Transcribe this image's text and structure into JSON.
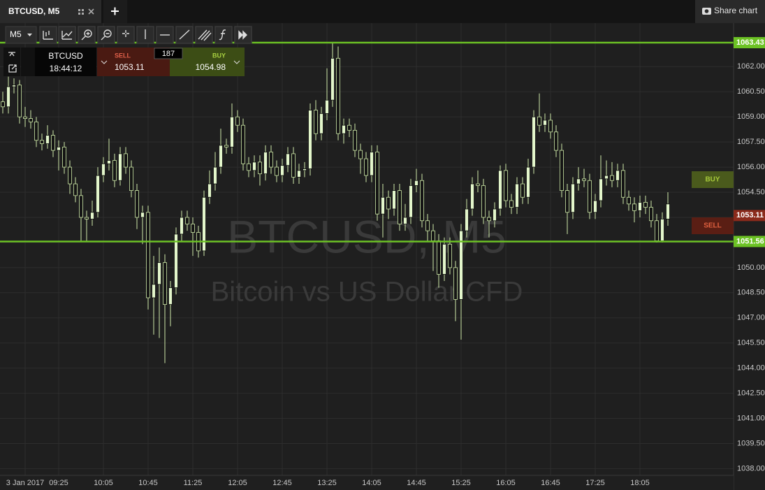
{
  "ui": {
    "tab": "BTCUSD, M5",
    "share": "Share chart",
    "timeframe": "M5",
    "symbol": "BTCUSD",
    "clock": "18:44:12",
    "sell_label": "SELL",
    "sell_price": 1053.11,
    "spread": 187,
    "buy_label": "BUY",
    "buy_price": 1054.98,
    "buy_tag": "BUY",
    "sell_tag": "SELL",
    "watermark_symbol": "BTCUSD, M5",
    "watermark_name": "Bitcoin vs US Dollar CFD"
  },
  "chart_data": {
    "type": "candlestick",
    "categories": [
      null,
      null,
      null,
      null,
      "3 Jan 2017",
      null,
      null,
      null,
      null,
      null,
      "09:25",
      null,
      null,
      null,
      null,
      null,
      null,
      null,
      "10:05",
      null,
      null,
      null,
      null,
      null,
      null,
      null,
      "10:45",
      null,
      null,
      null,
      null,
      null,
      null,
      null,
      "11:25",
      null,
      null,
      null,
      null,
      null,
      null,
      null,
      "12:05",
      null,
      null,
      null,
      null,
      null,
      null,
      null,
      "12:45",
      null,
      null,
      null,
      null,
      null,
      null,
      null,
      "13:25",
      null,
      null,
      null,
      null,
      null,
      null,
      null,
      "14:05",
      null,
      null,
      null,
      null,
      null,
      null,
      null,
      "14:45",
      null,
      null,
      null,
      null,
      null,
      null,
      null,
      "15:25",
      null,
      null,
      null,
      null,
      null,
      null,
      null,
      "16:05",
      null,
      null,
      null,
      null,
      null,
      null,
      null,
      "16:45",
      null,
      null,
      null,
      null,
      null,
      null,
      null,
      "17:25",
      null,
      null,
      null,
      null,
      null,
      null,
      null,
      "18:05",
      null,
      null,
      null,
      null,
      null
    ],
    "open": [
      1059.9,
      1059.6,
      1060.8,
      1060.9,
      1059.0,
      1058.9,
      1058.7,
      1057.6,
      1057.4,
      1057.9,
      1057.0,
      1057.2,
      1056.0,
      1055.0,
      1054.3,
      1053.0,
      1052.9,
      1053.3,
      1055.5,
      1056.2,
      1056.4,
      1055.2,
      1056.8,
      1056.0,
      1054.6,
      1053.0,
      1053.3,
      1048.2,
      1049.0,
      1050.3,
      1047.8,
      1048.8,
      1052.0,
      1053.0,
      1052.6,
      1052.1,
      1051.0,
      1054.2,
      1055.0,
      1056.0,
      1057.3,
      1057.2,
      1059.0,
      1058.5,
      1056.2,
      1055.8,
      1056.3,
      1055.6,
      1056.9,
      1056.0,
      1055.5,
      1056.1,
      1056.8,
      1055.4,
      1055.8,
      1055.9,
      1059.4,
      1058.0,
      1059.2,
      1060.0,
      1062.5,
      1058.0,
      1058.5,
      1058.2,
      1057.0,
      1056.5,
      1055.5,
      1056.9,
      1053.2,
      1054.2,
      1053.5,
      1054.6,
      1052.6,
      1053.0,
      1054.9,
      1055.2,
      1052.8,
      1052.2,
      1051.6,
      1049.6,
      1051.4,
      1050.0,
      1048.1,
      1052.2,
      1053.5,
      1055.0,
      1054.9,
      1053.0,
      1052.8,
      1053.5,
      1055.8,
      1054.0,
      1053.6,
      1055.0,
      1054.2,
      1056.0,
      1059.0,
      1058.5,
      1058.8,
      1058.1,
      1057.0,
      1054.6,
      1053.3,
      1055.0,
      1055.3,
      1055.2,
      1053.3,
      1054.0,
      1055.3,
      1055.5,
      1055.2,
      1055.8,
      1054.2,
      1053.8,
      1053.4,
      1053.9,
      1053.6,
      1052.8,
      1051.6,
      1052.9
    ],
    "high": [
      1060.5,
      1061.4,
      1061.3,
      1061.2,
      1059.6,
      1059.4,
      1059.0,
      1058.0,
      1058.5,
      1058.2,
      1057.6,
      1057.5,
      1056.4,
      1055.4,
      1054.7,
      1053.4,
      1054.0,
      1056.0,
      1056.6,
      1057.7,
      1056.8,
      1057.2,
      1057.2,
      1056.4,
      1055.0,
      1053.7,
      1053.7,
      1050.7,
      1051.2,
      1050.8,
      1049.2,
      1052.4,
      1053.4,
      1053.4,
      1053.0,
      1052.5,
      1054.6,
      1055.8,
      1056.9,
      1058.3,
      1057.7,
      1059.8,
      1059.4,
      1058.9,
      1056.6,
      1056.7,
      1056.7,
      1057.3,
      1057.3,
      1056.4,
      1056.5,
      1057.2,
      1057.2,
      1056.2,
      1056.3,
      1059.8,
      1060.0,
      1059.6,
      1061.9,
      1063.43,
      1063.2,
      1058.9,
      1058.9,
      1058.6,
      1057.4,
      1056.9,
      1057.3,
      1057.3,
      1055.0,
      1054.6,
      1055.0,
      1055.0,
      1053.8,
      1055.3,
      1055.9,
      1055.6,
      1053.2,
      1052.6,
      1052.0,
      1051.8,
      1051.8,
      1050.4,
      1052.6,
      1054.1,
      1055.4,
      1055.8,
      1055.3,
      1053.4,
      1053.9,
      1056.1,
      1056.2,
      1054.4,
      1055.4,
      1055.4,
      1056.5,
      1059.4,
      1060.4,
      1059.2,
      1059.2,
      1058.5,
      1057.4,
      1055.0,
      1055.4,
      1056.0,
      1055.9,
      1055.6,
      1054.4,
      1056.7,
      1056.4,
      1056.3,
      1056.2,
      1056.2,
      1054.6,
      1054.2,
      1054.3,
      1054.3,
      1054.0,
      1053.2,
      1053.3,
      1054.5
    ],
    "low": [
      1059.2,
      1059.2,
      1060.4,
      1058.6,
      1058.4,
      1058.3,
      1057.2,
      1057.0,
      1057.1,
      1056.6,
      1055.8,
      1055.6,
      1054.4,
      1053.9,
      1051.6,
      1051.6,
      1052.5,
      1053.0,
      1055.1,
      1055.8,
      1054.8,
      1054.9,
      1055.6,
      1054.2,
      1052.3,
      1051.4,
      1047.5,
      1046.0,
      1045.8,
      1044.3,
      1046.5,
      1048.4,
      1051.6,
      1052.2,
      1050.7,
      1050.6,
      1050.7,
      1053.8,
      1054.6,
      1055.6,
      1056.8,
      1056.8,
      1058.1,
      1055.8,
      1055.4,
      1055.4,
      1054.9,
      1055.2,
      1055.6,
      1055.1,
      1055.1,
      1055.7,
      1055.0,
      1055.0,
      1055.4,
      1055.5,
      1057.6,
      1057.6,
      1058.8,
      1059.6,
      1057.6,
      1057.4,
      1057.8,
      1056.6,
      1055.6,
      1055.1,
      1055.1,
      1052.8,
      1051.8,
      1052.9,
      1053.1,
      1052.2,
      1052.2,
      1052.6,
      1054.5,
      1052.4,
      1051.6,
      1049.8,
      1048.8,
      1049.2,
      1049.6,
      1046.8,
      1045.7,
      1051.8,
      1053.1,
      1054.5,
      1052.6,
      1051.8,
      1052.4,
      1053.1,
      1053.6,
      1053.2,
      1053.2,
      1053.8,
      1053.8,
      1055.6,
      1058.1,
      1058.1,
      1057.7,
      1056.6,
      1054.2,
      1052.0,
      1052.9,
      1054.6,
      1054.8,
      1052.9,
      1052.9,
      1053.6,
      1054.9,
      1054.8,
      1054.8,
      1053.8,
      1053.4,
      1052.7,
      1053.0,
      1053.2,
      1052.4,
      1051.5,
      1051.5,
      1052.5
    ],
    "close": [
      1059.6,
      1060.8,
      1060.9,
      1059.0,
      1058.9,
      1058.7,
      1057.6,
      1057.4,
      1057.9,
      1057.0,
      1057.2,
      1056.0,
      1055.0,
      1054.3,
      1053.0,
      1052.9,
      1053.3,
      1055.5,
      1056.2,
      1056.4,
      1055.2,
      1056.8,
      1056.0,
      1054.6,
      1053.0,
      1053.3,
      1048.2,
      1049.0,
      1050.3,
      1047.8,
      1048.8,
      1052.0,
      1053.0,
      1052.6,
      1052.1,
      1051.0,
      1054.2,
      1055.0,
      1056.0,
      1057.3,
      1057.2,
      1059.0,
      1058.5,
      1056.2,
      1055.8,
      1056.3,
      1055.6,
      1056.9,
      1056.0,
      1055.5,
      1056.1,
      1056.8,
      1055.4,
      1055.8,
      1055.9,
      1059.4,
      1058.0,
      1059.2,
      1060.0,
      1062.5,
      1058.0,
      1058.5,
      1058.2,
      1057.0,
      1056.5,
      1055.5,
      1056.9,
      1053.2,
      1054.2,
      1053.5,
      1054.6,
      1052.6,
      1053.0,
      1054.9,
      1055.2,
      1052.8,
      1052.2,
      1051.6,
      1049.6,
      1051.4,
      1050.0,
      1048.1,
      1052.2,
      1053.5,
      1055.0,
      1054.9,
      1053.0,
      1052.8,
      1053.5,
      1055.8,
      1054.0,
      1053.6,
      1055.0,
      1054.2,
      1056.0,
      1059.0,
      1058.5,
      1058.8,
      1058.1,
      1057.0,
      1054.6,
      1053.3,
      1055.0,
      1055.3,
      1055.2,
      1053.3,
      1054.0,
      1055.3,
      1055.5,
      1055.2,
      1055.8,
      1054.2,
      1053.8,
      1053.4,
      1053.9,
      1053.6,
      1052.8,
      1051.6,
      1052.9,
      1053.8
    ],
    "up_color": "#e3f6cb",
    "down_color": "#141414",
    "wick_color": "#cfeaa8",
    "ylim": [
      1037.6,
      1064.6
    ],
    "yticks": [
      {
        "value": 1062,
        "label": "1062.00"
      },
      {
        "value": 1060.5,
        "label": "1060.50"
      },
      {
        "value": 1059,
        "label": "1059.00"
      },
      {
        "value": 1057.5,
        "label": "1057.50"
      },
      {
        "value": 1056,
        "label": "1056.00"
      },
      {
        "value": 1054.5,
        "label": "1054.50"
      },
      {
        "value": 1053,
        "label": "1053.00"
      },
      {
        "value": 1051.5,
        "label": "1051.50"
      },
      {
        "value": 1050,
        "label": "1050.00"
      },
      {
        "value": 1048.5,
        "label": "1048.50"
      },
      {
        "value": 1047,
        "label": "1047.00"
      },
      {
        "value": 1045.5,
        "label": "1045.50"
      },
      {
        "value": 1044,
        "label": "1044.00"
      },
      {
        "value": 1042.5,
        "label": "1042.50"
      },
      {
        "value": 1041,
        "label": "1041.00"
      },
      {
        "value": 1039.5,
        "label": "1039.50"
      },
      {
        "value": 1038,
        "label": "1038.00"
      }
    ],
    "grid": true,
    "price_markers": [
      {
        "value": 1063.43,
        "color": "#6cc224",
        "line": true
      },
      {
        "value": 1053.11,
        "color": "#8a2a1b",
        "line": false
      },
      {
        "value": 1051.56,
        "color": "#6cc224",
        "line": true
      }
    ]
  }
}
